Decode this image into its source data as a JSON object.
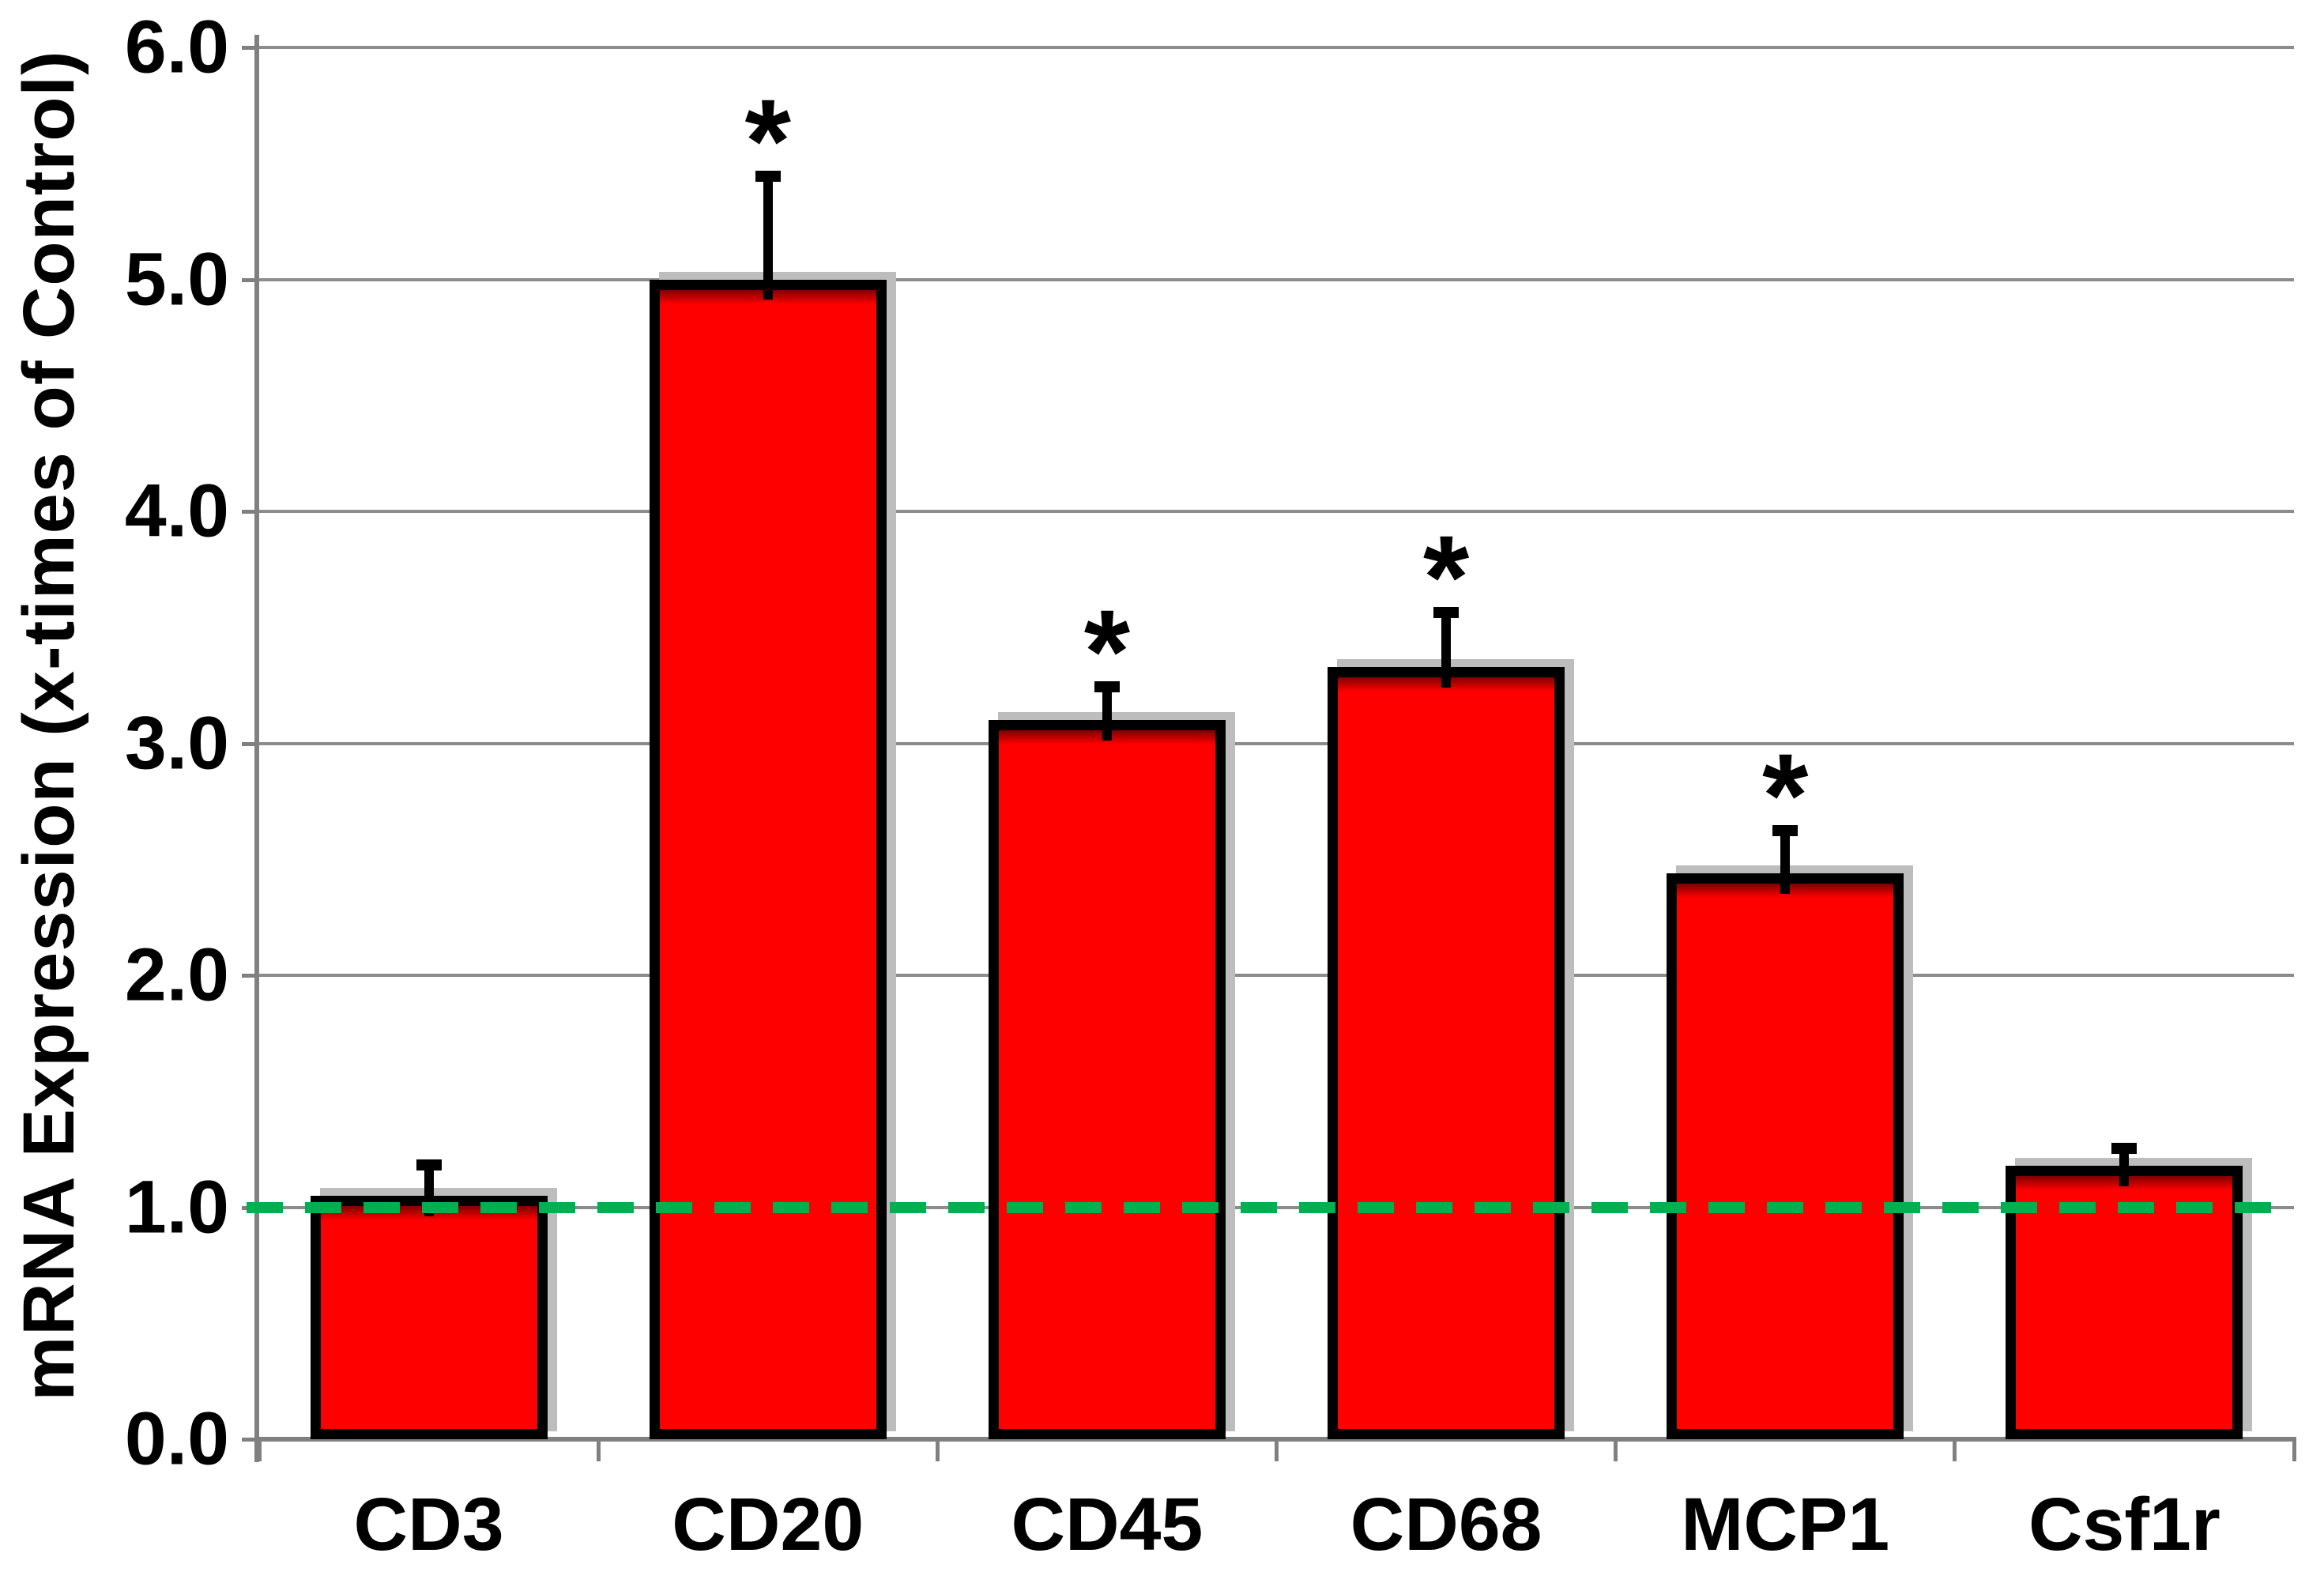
{
  "page": {
    "background": "#FFFFFF",
    "description": "Bar chart of mRNA expression fold-change for immune cell markers"
  },
  "chart_data": {
    "type": "bar",
    "title": "",
    "xlabel": "",
    "ylabel": "mRNA Expression (x-times of Control)",
    "categories": [
      "CD3",
      "CD20",
      "CD45",
      "CD68",
      "MCP1",
      "Csf1r"
    ],
    "values": [
      1.05,
      5.0,
      3.1,
      3.33,
      2.44,
      1.18
    ],
    "errors_upper": [
      0.15,
      0.46,
      0.16,
      0.25,
      0.2,
      0.09
    ],
    "significant": [
      false,
      true,
      true,
      true,
      true,
      false
    ],
    "significance_marker": "*",
    "ylim": [
      0,
      6
    ],
    "ytick_labels": [
      "0.0",
      "1.0",
      "2.0",
      "3.0",
      "4.0",
      "5.0",
      "6.0"
    ],
    "ytick_values": [
      0,
      1,
      2,
      3,
      4,
      5,
      6
    ],
    "grid": "horizontal gridlines at every 1.0",
    "legend": "none",
    "reference_line": {
      "y": 1.0,
      "style": "dashed",
      "color": "#00B050"
    },
    "colors": {
      "bar_fill": "#FF0000",
      "bar_border": "#000000",
      "bar_shadow": "#BDBDBD",
      "axis_line": "#808080",
      "gridline": "#8C8C8C",
      "error_bar": "#000000",
      "text": "#000000",
      "reference_green": "#00B050"
    }
  }
}
